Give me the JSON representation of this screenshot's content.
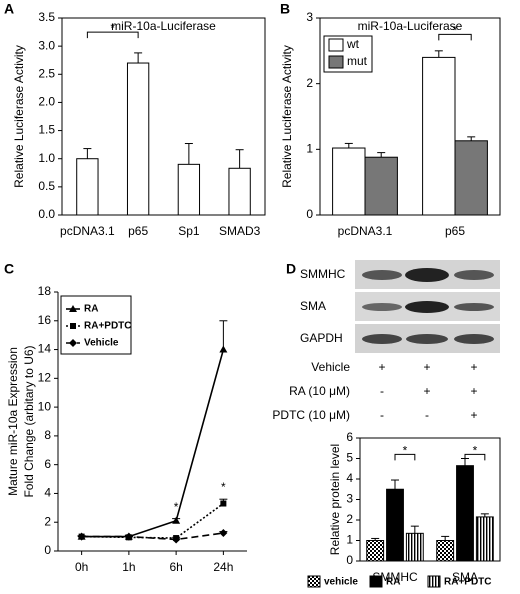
{
  "panels": [
    "A",
    "B",
    "C",
    "D"
  ],
  "blot": {
    "bands": [
      "SMMHC",
      "SMA",
      "GAPDH"
    ],
    "treatments": [
      {
        "name": "Vehicle",
        "signs": [
          "+",
          "+",
          "+"
        ]
      },
      {
        "name": "RA (10 μM)",
        "signs": [
          "-",
          "+",
          "+"
        ]
      },
      {
        "name": "PDTC (10 μM)",
        "signs": [
          "-",
          "-",
          "+"
        ]
      }
    ]
  },
  "chart_data": [
    {
      "type": "bar",
      "title": "miR-10a-Luciferase",
      "ylabel": [
        "Relative Luciferase Activity"
      ],
      "categories": [
        "pcDNA3.1",
        "p65",
        "Sp1",
        "SMAD3"
      ],
      "values": [
        1.0,
        2.7,
        0.9,
        0.83
      ],
      "errors": [
        0.18,
        0.18,
        0.37,
        0.33
      ],
      "color": "#ffffff",
      "ylim": [
        0,
        3.5
      ],
      "yticks": [
        {
          "value": 0,
          "label": "0.0"
        },
        0.5,
        {
          "value": 1,
          "label": "1.0"
        },
        1.5,
        {
          "value": 2,
          "label": "2.0"
        },
        2.5,
        {
          "value": 3,
          "label": "3.0"
        },
        3.5
      ],
      "frame": true,
      "annotations": [
        "*"
      ]
    },
    {
      "type": "bar",
      "title": "miR-10a-Luciferase",
      "ylabel": [
        "Relative Luciferase Activity"
      ],
      "categories": [
        "pcDNA3.1",
        "p65"
      ],
      "series": [
        {
          "name": "wt",
          "color": "#ffffff",
          "values": [
            1.02,
            2.4
          ],
          "errors": [
            0.07,
            0.1
          ]
        },
        {
          "name": "mut",
          "color": "#777777",
          "values": [
            0.88,
            1.13
          ],
          "errors": [
            0.07,
            0.06
          ]
        }
      ],
      "ylim": [
        0,
        3
      ],
      "yticks": [
        0,
        1,
        2,
        3
      ],
      "frame": true,
      "legend": "upper left",
      "annotations": [
        "*"
      ]
    },
    {
      "type": "line",
      "ylabel": [
        "Mature miR-10a Expression",
        "Fold Change (arbitary to U6)"
      ],
      "categories": [
        "0h",
        "1h",
        "6h",
        "24h"
      ],
      "series": [
        {
          "name": "RA",
          "color": "#000000",
          "dash": "solid",
          "marker": "triangle",
          "values": [
            1.0,
            1.0,
            2.1,
            14.0
          ],
          "errors": [
            0.05,
            0.1,
            0.15,
            2.0
          ]
        },
        {
          "name": "RA+PDTC",
          "color": "#000000",
          "dash": "dotted",
          "marker": "square",
          "values": [
            1.0,
            0.95,
            0.9,
            3.3
          ],
          "errors": [
            0.05,
            0.05,
            0.05,
            0.3
          ]
        },
        {
          "name": "Vehicle",
          "color": "#000000",
          "dash": "dashed",
          "marker": "diamond",
          "values": [
            1.0,
            1.0,
            0.8,
            1.25
          ],
          "errors": [
            0.05,
            0.05,
            0.05,
            0.1
          ]
        }
      ],
      "ylim": [
        0,
        18
      ],
      "yticks": [
        0,
        2,
        4,
        6,
        8,
        10,
        12,
        14,
        16,
        18
      ],
      "frame": false,
      "legend": "upper left",
      "annotations": [
        "*",
        "*"
      ]
    },
    {
      "type": "bar",
      "ylabel": [
        "Relative protein level"
      ],
      "categories": [
        "SMMHC",
        "SMA"
      ],
      "series": [
        {
          "name": "vehicle",
          "color": "#000000",
          "pattern": "checker",
          "values": [
            1.0,
            1.0
          ],
          "errors": [
            0.1,
            0.2
          ]
        },
        {
          "name": "RA",
          "color": "#000000",
          "pattern": "solid",
          "values": [
            3.5,
            4.65
          ],
          "errors": [
            0.45,
            0.35
          ]
        },
        {
          "name": "RA+PDTC",
          "color": "#000000",
          "pattern": "stripes",
          "values": [
            1.35,
            2.15
          ],
          "errors": [
            0.35,
            0.15
          ]
        }
      ],
      "ylim": [
        0,
        6
      ],
      "yticks": [
        0,
        1,
        2,
        3,
        4,
        5,
        6
      ],
      "frame": true,
      "legend": "below",
      "annotations": [
        "*",
        "*"
      ]
    }
  ]
}
